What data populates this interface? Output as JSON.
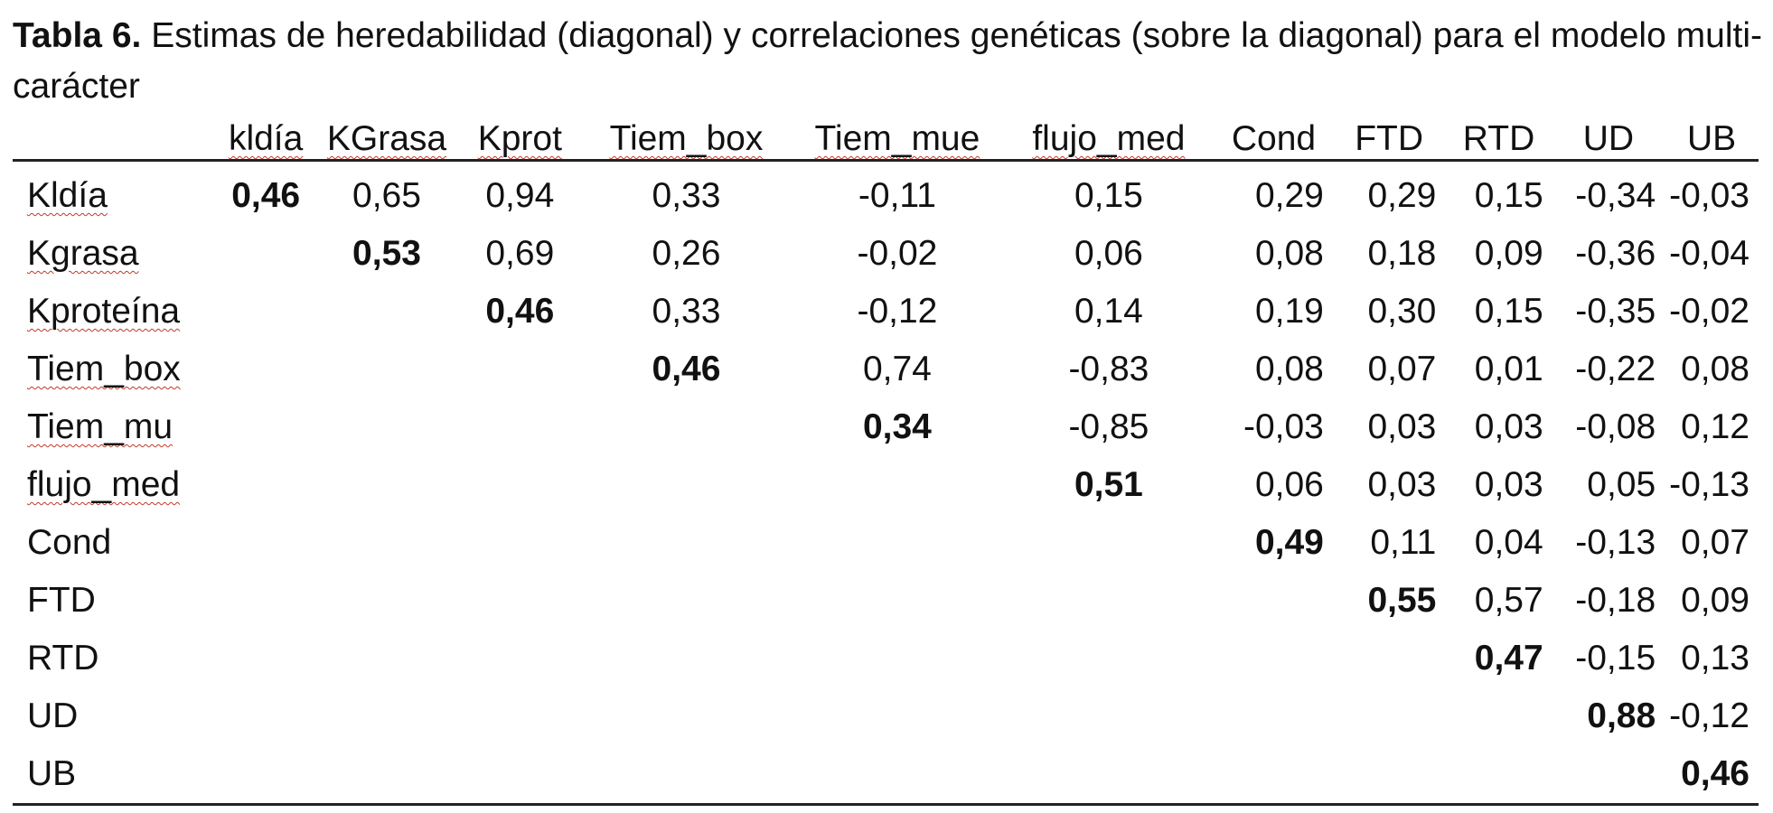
{
  "caption": {
    "label": "Tabla 6.",
    "text": " Estimas de heredabilidad (diagonal) y correlaciones genéticas (sobre la diagonal) para el modelo multi-carácter"
  },
  "table": {
    "columns": [
      "kldía",
      "KGrasa",
      "Kprot",
      "Tiem_box",
      "Tiem_mue",
      "flujo_med",
      "Cond",
      "FTD",
      "RTD",
      "UD",
      "UB"
    ],
    "columns_squiggled": [
      true,
      true,
      true,
      true,
      true,
      true,
      false,
      false,
      false,
      false,
      false
    ],
    "rows": [
      {
        "label": "Kldía",
        "squiggled": true,
        "cells": [
          "0,46",
          "0,65",
          "0,94",
          "0,33",
          "-0,11",
          "0,15",
          "0,29",
          "0,29",
          "0,15",
          "-0,34",
          "-0,03"
        ]
      },
      {
        "label": "Kgrasa",
        "squiggled": true,
        "cells": [
          "",
          "0,53",
          "0,69",
          "0,26",
          "-0,02",
          "0,06",
          "0,08",
          "0,18",
          "0,09",
          "-0,36",
          "-0,04"
        ]
      },
      {
        "label": "Kproteína",
        "squiggled": true,
        "cells": [
          "",
          "",
          "0,46",
          "0,33",
          "-0,12",
          "0,14",
          "0,19",
          "0,30",
          "0,15",
          "-0,35",
          "-0,02"
        ]
      },
      {
        "label": "Tiem_box",
        "squiggled": true,
        "cells": [
          "",
          "",
          "",
          "0,46",
          "0,74",
          "-0,83",
          "0,08",
          "0,07",
          "0,01",
          "-0,22",
          "0,08"
        ]
      },
      {
        "label": "Tiem_mu",
        "squiggled": true,
        "cells": [
          "",
          "",
          "",
          "",
          "0,34",
          "-0,85",
          "-0,03",
          "0,03",
          "0,03",
          "-0,08",
          "0,12"
        ]
      },
      {
        "label": "flujo_med",
        "squiggled": true,
        "cells": [
          "",
          "",
          "",
          "",
          "",
          "0,51",
          "0,06",
          "0,03",
          "0,03",
          "0,05",
          "-0,13"
        ]
      },
      {
        "label": "Cond",
        "squiggled": false,
        "cells": [
          "",
          "",
          "",
          "",
          "",
          "",
          "0,49",
          "0,11",
          "0,04",
          "-0,13",
          "0,07"
        ]
      },
      {
        "label": "FTD",
        "squiggled": false,
        "cells": [
          "",
          "",
          "",
          "",
          "",
          "",
          "",
          "0,55",
          "0,57",
          "-0,18",
          "0,09"
        ]
      },
      {
        "label": "RTD",
        "squiggled": false,
        "cells": [
          "",
          "",
          "",
          "",
          "",
          "",
          "",
          "",
          "0,47",
          "-0,15",
          "0,13"
        ]
      },
      {
        "label": "UD",
        "squiggled": false,
        "cells": [
          "",
          "",
          "",
          "",
          "",
          "",
          "",
          "",
          "",
          "0,88",
          "-0,12"
        ]
      },
      {
        "label": "UB",
        "squiggled": false,
        "cells": [
          "",
          "",
          "",
          "",
          "",
          "",
          "",
          "",
          "",
          "",
          "0,46"
        ]
      }
    ]
  }
}
